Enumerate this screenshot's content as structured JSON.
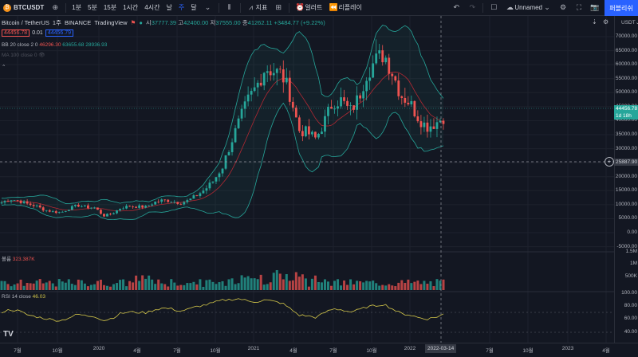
{
  "toolbar": {
    "symbol": "BTCUSDT",
    "add_icon": "plus-circle-icon",
    "intervals": [
      "1분",
      "5분",
      "15분",
      "1시간",
      "4시간",
      "날",
      "주",
      "달"
    ],
    "active_interval": "주",
    "indicators_label": "지표",
    "alert_label": "얼러트",
    "replay_label": "리플레이",
    "layout_name": "Unnamed",
    "publish_label": "퍼블리쉬"
  },
  "legend": {
    "title": "Bitcoin / TetherUS",
    "interval": "1주",
    "exchange": "BINANCE",
    "source": "TradingView",
    "open_label": "시",
    "open": "37777.39",
    "high_label": "고",
    "high": "42400.00",
    "low_label": "저",
    "low": "37555.00",
    "close_label": "종",
    "close": "41262.11",
    "change": "+3484.77 (+9.22%)",
    "bid": "44456.78",
    "spread": "0.01",
    "ask": "44456.79"
  },
  "indicators": {
    "bb_label": "BB 20 close 2 0",
    "bb_basis": "46296.30",
    "bb_upper": "63655.68",
    "bb_lower": "28936.93",
    "ma_label": "MA 100 close 0",
    "volume_label": "볼륨",
    "volume_value": "323.387K",
    "rsi_label": "RSI 14 close",
    "rsi_value": "46.03"
  },
  "price_axis": {
    "currency": "USDT",
    "ticks": [
      "70000.00",
      "65000.00",
      "60000.00",
      "55000.00",
      "50000.00",
      "45000.00",
      "40000.00",
      "35000.00",
      "30000.00",
      "25000.00",
      "20000.00",
      "15000.00",
      "10000.00",
      "5000.00",
      "0.00",
      "-5000.00"
    ],
    "last_price": "44456.78",
    "countdown": "1d 18h",
    "crosshair_price": "25887.90",
    "volume_ticks": [
      "1.5M",
      "1M",
      "500K"
    ],
    "rsi_ticks": [
      "100.00",
      "80.00",
      "60.00",
      "40.00"
    ]
  },
  "time_axis": {
    "ticks": [
      "7월",
      "10월",
      "2020",
      "4월",
      "7월",
      "10월",
      "2021",
      "4월",
      "7월",
      "10월",
      "2022",
      "7월",
      "10월",
      "2023",
      "4월"
    ],
    "crosshair_date": "2022-03-14"
  },
  "colors": {
    "up": "#26a69a",
    "down": "#ef5350",
    "bb": "#26a69a",
    "rsi": "#d5c84a",
    "accent": "#2962ff"
  },
  "chart_data": {
    "type": "candlestick",
    "weekly_close_path_note": "",
    "points": [
      [
        0,
        10800
      ],
      [
        4,
        12000
      ],
      [
        8,
        11400
      ],
      [
        12,
        10300
      ],
      [
        16,
        9600
      ],
      [
        20,
        8200
      ],
      [
        24,
        7500
      ],
      [
        28,
        7200
      ],
      [
        32,
        8700
      ],
      [
        36,
        9800
      ],
      [
        40,
        9100
      ],
      [
        44,
        8900
      ],
      [
        48,
        6000
      ],
      [
        52,
        6800
      ],
      [
        56,
        8800
      ],
      [
        60,
        9500
      ],
      [
        64,
        9300
      ],
      [
        68,
        9200
      ],
      [
        72,
        10900
      ],
      [
        76,
        11600
      ],
      [
        80,
        11300
      ],
      [
        84,
        10600
      ],
      [
        88,
        11500
      ],
      [
        92,
        13400
      ],
      [
        96,
        15600
      ],
      [
        100,
        18800
      ],
      [
        104,
        23600
      ],
      [
        108,
        32200
      ],
      [
        112,
        40000
      ],
      [
        116,
        47200
      ],
      [
        120,
        52200
      ],
      [
        124,
        59000
      ],
      [
        128,
        57800
      ],
      [
        132,
        56400
      ],
      [
        136,
        49000
      ],
      [
        140,
        36600
      ],
      [
        144,
        35700
      ],
      [
        148,
        33500
      ],
      [
        152,
        39800
      ],
      [
        156,
        46900
      ],
      [
        160,
        47200
      ],
      [
        164,
        43200
      ],
      [
        168,
        48000
      ],
      [
        172,
        57500
      ],
      [
        176,
        61300
      ],
      [
        180,
        64000
      ],
      [
        184,
        57200
      ],
      [
        188,
        49200
      ],
      [
        192,
        46600
      ],
      [
        196,
        41400
      ],
      [
        200,
        37800
      ],
      [
        204,
        39000
      ],
      [
        208,
        41262
      ]
    ],
    "rsi": [
      52,
      58,
      55,
      45,
      40,
      36,
      32,
      30,
      38,
      46,
      42,
      41,
      30,
      36,
      48,
      52,
      51,
      50,
      58,
      62,
      60,
      54,
      59,
      66,
      70,
      76,
      82,
      84,
      86,
      80,
      78,
      83,
      79,
      75,
      60,
      44,
      42,
      38,
      50,
      60,
      58,
      52,
      57,
      65,
      68,
      72,
      60,
      48,
      45,
      38,
      34,
      38,
      46
    ]
  }
}
